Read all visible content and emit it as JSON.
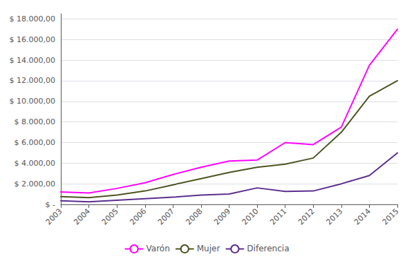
{
  "chart_data": {
    "type": "line",
    "x": [
      2003,
      2004,
      2005,
      2006,
      2007,
      2008,
      2009,
      2010,
      2011,
      2012,
      2013,
      2014,
      2015
    ],
    "xlim": [
      2003,
      2015
    ],
    "xticks": [
      2003,
      2004,
      2005,
      2006,
      2007,
      2008,
      2009,
      2010,
      2011,
      2012,
      2013,
      2014,
      2015
    ],
    "ylim": [
      0,
      18500
    ],
    "yticks": [
      {
        "value": 0,
        "label": "$ -"
      },
      {
        "value": 2000,
        "label": "$ 2.000,00"
      },
      {
        "value": 4000,
        "label": "$ 4.000,00"
      },
      {
        "value": 6000,
        "label": "$ 6.000,00"
      },
      {
        "value": 8000,
        "label": "$ 8.000,00"
      },
      {
        "value": 10000,
        "label": "$ 10.000,00"
      },
      {
        "value": 12000,
        "label": "$ 12.000,00"
      },
      {
        "value": 14000,
        "label": "$ 14.000,00"
      },
      {
        "value": 16000,
        "label": "$ 16.000,00"
      },
      {
        "value": 18000,
        "label": "$ 18.000,00"
      }
    ],
    "grid": true,
    "legend": "bottom",
    "series": [
      {
        "name": "Varón",
        "color": "#FF00FF",
        "values": [
          1200,
          1100,
          1550,
          2100,
          2900,
          3600,
          4200,
          4300,
          6000,
          5800,
          7500,
          13500,
          17000
        ]
      },
      {
        "name": "Mujer",
        "color": "#4B5320",
        "values": [
          750,
          650,
          900,
          1300,
          1900,
          2500,
          3100,
          3600,
          3900,
          4500,
          7000,
          10500,
          12000
        ]
      },
      {
        "name": "Diferencia",
        "color": "#5B2D8E",
        "values": [
          350,
          250,
          400,
          550,
          700,
          900,
          1000,
          1600,
          1250,
          1300,
          2000,
          2800,
          5000
        ]
      }
    ]
  }
}
